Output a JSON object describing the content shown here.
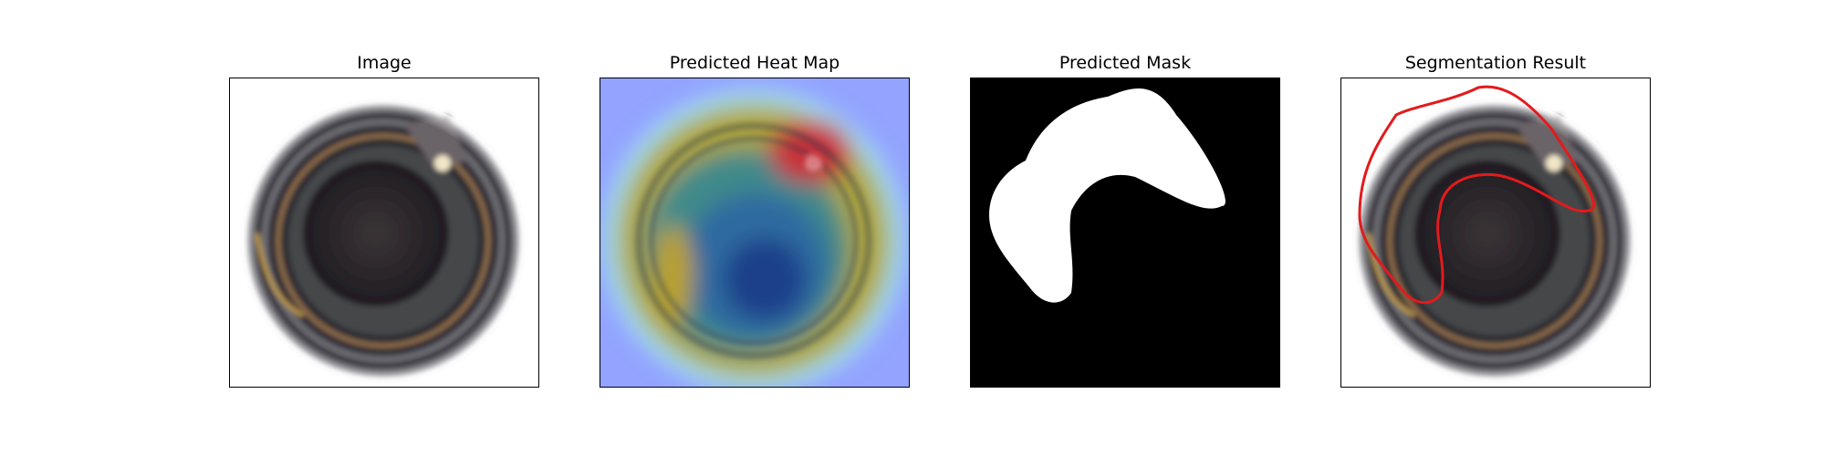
{
  "panels": [
    {
      "title": "Image"
    },
    {
      "title": "Predicted Heat Map"
    },
    {
      "title": "Predicted Mask"
    },
    {
      "title": "Segmentation Result"
    }
  ],
  "colors": {
    "contour": "#e31a1c",
    "mask_fg": "#ffffff",
    "mask_bg": "#000000",
    "heat_low": "#8c8cff",
    "heat_high": "#d8333a"
  }
}
